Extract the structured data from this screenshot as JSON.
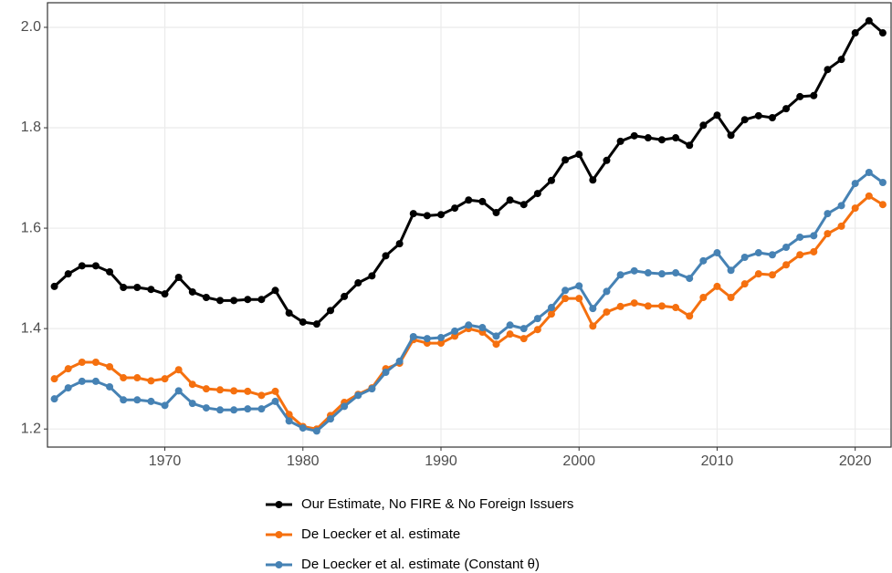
{
  "chart_data": {
    "type": "line",
    "x": [
      1962,
      1963,
      1964,
      1965,
      1966,
      1967,
      1968,
      1969,
      1970,
      1971,
      1972,
      1973,
      1974,
      1975,
      1976,
      1977,
      1978,
      1979,
      1980,
      1981,
      1982,
      1983,
      1984,
      1985,
      1986,
      1987,
      1988,
      1989,
      1990,
      1991,
      1992,
      1993,
      1994,
      1995,
      1996,
      1997,
      1998,
      1999,
      2000,
      2001,
      2002,
      2003,
      2004,
      2005,
      2006,
      2007,
      2008,
      2009,
      2010,
      2011,
      2012,
      2013,
      2014,
      2015,
      2016,
      2017,
      2018,
      2019,
      2020,
      2021,
      2022
    ],
    "series": [
      {
        "name": "Our Estimate, No FIRE & No Foreign Issuers",
        "color": "#000000",
        "values": [
          1.484,
          1.509,
          1.525,
          1.525,
          1.513,
          1.482,
          1.482,
          1.478,
          1.469,
          1.502,
          1.473,
          1.462,
          1.456,
          1.456,
          1.458,
          1.458,
          1.476,
          1.431,
          1.413,
          1.409,
          1.436,
          1.464,
          1.491,
          1.505,
          1.545,
          1.569,
          1.629,
          1.625,
          1.627,
          1.64,
          1.656,
          1.653,
          1.631,
          1.656,
          1.647,
          1.669,
          1.695,
          1.736,
          1.747,
          1.696,
          1.735,
          1.773,
          1.784,
          1.78,
          1.776,
          1.78,
          1.765,
          1.805,
          1.825,
          1.785,
          1.816,
          1.824,
          1.82,
          1.838,
          1.862,
          1.864,
          1.916,
          1.936,
          1.989,
          2.013,
          1.989
        ]
      },
      {
        "name": "De Loecker et al. estimate",
        "color": "#f5700f",
        "values": [
          1.3,
          1.32,
          1.333,
          1.333,
          1.324,
          1.302,
          1.302,
          1.296,
          1.3,
          1.318,
          1.289,
          1.28,
          1.278,
          1.276,
          1.275,
          1.267,
          1.275,
          1.229,
          1.205,
          1.2,
          1.227,
          1.253,
          1.269,
          1.282,
          1.32,
          1.331,
          1.378,
          1.371,
          1.371,
          1.385,
          1.4,
          1.393,
          1.369,
          1.389,
          1.38,
          1.398,
          1.429,
          1.46,
          1.46,
          1.405,
          1.433,
          1.444,
          1.451,
          1.445,
          1.445,
          1.442,
          1.425,
          1.462,
          1.484,
          1.462,
          1.489,
          1.509,
          1.507,
          1.527,
          1.547,
          1.553,
          1.589,
          1.604,
          1.64,
          1.664,
          1.647
        ]
      },
      {
        "name": "De Loecker et al. estimate (Constant θ)",
        "color": "#4682b4",
        "values": [
          1.26,
          1.282,
          1.295,
          1.295,
          1.284,
          1.258,
          1.258,
          1.255,
          1.247,
          1.276,
          1.251,
          1.242,
          1.238,
          1.238,
          1.24,
          1.24,
          1.255,
          1.216,
          1.202,
          1.196,
          1.22,
          1.245,
          1.267,
          1.28,
          1.313,
          1.335,
          1.384,
          1.38,
          1.382,
          1.395,
          1.407,
          1.402,
          1.385,
          1.407,
          1.4,
          1.42,
          1.442,
          1.476,
          1.485,
          1.44,
          1.474,
          1.507,
          1.515,
          1.511,
          1.509,
          1.511,
          1.5,
          1.535,
          1.551,
          1.516,
          1.542,
          1.551,
          1.547,
          1.562,
          1.582,
          1.585,
          1.629,
          1.645,
          1.689,
          1.711,
          1.691
        ]
      }
    ],
    "xlim": [
      1961.5,
      2022.6
    ],
    "ylim": [
      1.164,
      2.049
    ],
    "xticks": [
      1970,
      1980,
      1990,
      2000,
      2010,
      2020
    ],
    "yticks": [
      1.2,
      1.4,
      1.6,
      1.8,
      {
        "value": 2,
        "label": "2.0"
      }
    ],
    "grid": true,
    "legend": "bottom"
  }
}
